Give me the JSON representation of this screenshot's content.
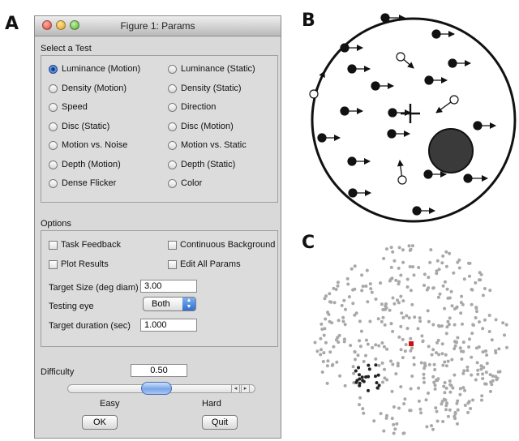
{
  "panel_labels": {
    "a": "A",
    "b": "B",
    "c": "C"
  },
  "window": {
    "title": "Figure 1: Params",
    "select_test_label": "Select a Test",
    "tests_left": [
      "Luminance (Motion)",
      "Density (Motion)",
      "Speed",
      "Disc (Static)",
      "Motion vs. Noise",
      "Depth (Motion)",
      "Dense Flicker"
    ],
    "tests_right": [
      "Luminance (Static)",
      "Density (Static)",
      "Direction",
      "Disc (Motion)",
      "Motion vs. Static",
      "Depth (Static)",
      "Color"
    ],
    "selected_test": "Luminance (Motion)",
    "options_label": "Options",
    "task_feedback": "Task Feedback",
    "continuous_background": "Continuous Background",
    "plot_results": "Plot Results",
    "edit_all_params": "Edit All Params",
    "target_size_label": "Target Size (deg diam)",
    "target_size_value": "3.00",
    "testing_eye_label": "Testing eye",
    "testing_eye_value": "Both",
    "target_duration_label": "Target duration (sec)",
    "target_duration_value": "1.000",
    "difficulty_label": "Difficulty",
    "difficulty_value": "0.50",
    "easy_label": "Easy",
    "hard_label": "Hard",
    "ok_label": "OK",
    "quit_label": "Quit",
    "slider_level": 0.5
  },
  "colors": {
    "dot_dark": "#111111",
    "disc_fill": "#3a3a3a",
    "target_red": "#d01010",
    "dot_grey": "#a8a8a8"
  },
  "icons": {
    "close": "close-icon",
    "minimize": "minimize-icon",
    "zoom": "zoom-icon",
    "popup": "chevron-updown-icon",
    "fixation": "fixation-cross-icon"
  }
}
